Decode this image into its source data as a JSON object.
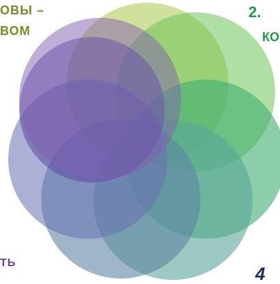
{
  "labels": {
    "top_left_line1": "ОВЫ –",
    "top_left_line2": "ВОМ",
    "top_right_line1": "2.",
    "top_right_line2": "КО",
    "bottom_left": "ТЬ",
    "bottom_right": "4"
  },
  "circles": [
    {
      "name": "circle-top-olive",
      "color": "#a9c94a"
    },
    {
      "name": "circle-upper-right-green",
      "color": "#6dc45a"
    },
    {
      "name": "circle-right-teal",
      "color": "#3fae72"
    },
    {
      "name": "circle-lower-right-teal",
      "color": "#5aa59a"
    },
    {
      "name": "circle-bottom-slate",
      "color": "#5d86a2"
    },
    {
      "name": "circle-lower-left-blue",
      "color": "#6a6fb2"
    },
    {
      "name": "circle-left-indigo",
      "color": "#5a4aa2"
    },
    {
      "name": "circle-upper-left-purple",
      "color": "#7f5fb0"
    }
  ]
}
